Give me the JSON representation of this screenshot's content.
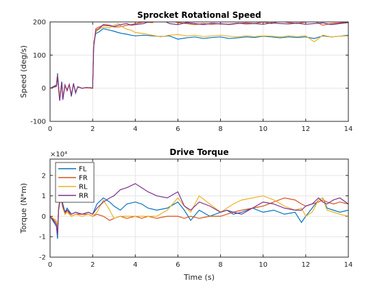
{
  "chart_data": [
    {
      "type": "line",
      "title": "Sprocket Rotational Speed",
      "xlabel": "",
      "ylabel": "Speed (deg/s)",
      "xlim": [
        0,
        14
      ],
      "ylim": [
        -100,
        200
      ],
      "xticks": [
        "0",
        "2",
        "4",
        "6",
        "8",
        "10",
        "12",
        "14"
      ],
      "yticks": [
        "-100",
        "0",
        "100",
        "200"
      ],
      "grid": true,
      "series": [
        {
          "color": "#0072BD",
          "x": [
            0,
            0.3,
            0.35,
            0.45,
            0.55,
            0.6,
            0.7,
            0.8,
            0.9,
            1.0,
            1.1,
            1.2,
            1.3,
            1.5,
            1.7,
            1.9,
            2.0,
            2.05,
            2.15,
            2.3,
            2.5,
            2.8,
            3.0,
            3.2,
            3.4,
            3.6,
            3.8,
            4.0,
            4.4,
            4.8,
            5.2,
            5.6,
            6.0,
            6.4,
            6.8,
            7.2,
            7.6,
            8.0,
            8.4,
            8.8,
            9.2,
            9.6,
            10.0,
            10.4,
            10.8,
            11.2,
            11.6,
            12.0,
            12.4,
            12.8,
            13.2,
            13.6,
            14.0
          ],
          "y": [
            0,
            10,
            45,
            -30,
            20,
            -35,
            8,
            -5,
            10,
            -25,
            15,
            -15,
            5,
            0,
            2,
            1,
            0,
            140,
            165,
            170,
            180,
            175,
            172,
            168,
            165,
            163,
            160,
            158,
            160,
            158,
            156,
            158,
            148,
            152,
            155,
            150,
            153,
            155,
            150,
            152,
            155,
            153,
            157,
            155,
            152,
            155,
            153,
            155,
            150,
            158,
            155,
            157,
            160
          ]
        },
        {
          "color": "#D95319",
          "x": [
            0,
            0.3,
            0.35,
            0.45,
            0.55,
            0.6,
            0.7,
            0.8,
            0.9,
            1.0,
            1.1,
            1.2,
            1.3,
            1.5,
            1.7,
            1.9,
            2.0,
            2.05,
            2.15,
            2.3,
            2.5,
            2.8,
            3.0,
            3.2,
            3.4,
            3.6,
            3.8,
            4.0,
            4.4,
            4.8,
            5.2,
            5.6,
            6.0,
            6.4,
            6.8,
            7.2,
            7.6,
            8.0,
            8.4,
            8.8,
            9.2,
            9.6,
            10.0,
            10.4,
            10.8,
            11.2,
            11.6,
            12.0,
            12.4,
            12.8,
            13.2,
            13.6,
            14.0
          ],
          "y": [
            0,
            8,
            40,
            -35,
            15,
            -30,
            10,
            -8,
            12,
            -20,
            12,
            -12,
            4,
            0,
            1,
            2,
            0,
            130,
            180,
            185,
            190,
            188,
            185,
            185,
            187,
            190,
            192,
            195,
            200,
            198,
            212,
            205,
            198,
            195,
            192,
            195,
            193,
            195,
            192,
            195,
            197,
            195,
            200,
            195,
            203,
            198,
            195,
            200,
            203,
            190,
            195,
            197,
            200
          ]
        },
        {
          "color": "#EDB120",
          "x": [
            0,
            0.3,
            0.35,
            0.45,
            0.55,
            0.6,
            0.7,
            0.8,
            0.9,
            1.0,
            1.1,
            1.2,
            1.3,
            1.5,
            1.7,
            1.9,
            2.0,
            2.05,
            2.15,
            2.3,
            2.5,
            2.8,
            3.0,
            3.2,
            3.4,
            3.6,
            3.8,
            4.0,
            4.4,
            4.8,
            5.2,
            5.6,
            6.0,
            6.4,
            6.8,
            7.2,
            7.6,
            8.0,
            8.4,
            8.8,
            9.2,
            9.6,
            10.0,
            10.4,
            10.8,
            11.2,
            11.6,
            12.0,
            12.4,
            12.8,
            13.2,
            13.6,
            14.0
          ],
          "y": [
            0,
            5,
            30,
            -25,
            12,
            -28,
            6,
            -4,
            8,
            -18,
            10,
            -10,
            3,
            0,
            1,
            0,
            0,
            135,
            170,
            178,
            185,
            182,
            190,
            195,
            185,
            178,
            175,
            168,
            165,
            160,
            155,
            160,
            162,
            158,
            160,
            156,
            158,
            160,
            157,
            155,
            158,
            156,
            158,
            157,
            155,
            158,
            156,
            158,
            140,
            160,
            155,
            157,
            158
          ]
        },
        {
          "color": "#7E2F8E",
          "x": [
            0,
            0.3,
            0.35,
            0.45,
            0.55,
            0.6,
            0.7,
            0.8,
            0.9,
            1.0,
            1.1,
            1.2,
            1.3,
            1.5,
            1.7,
            1.9,
            2.0,
            2.05,
            2.15,
            2.3,
            2.5,
            2.8,
            3.0,
            3.2,
            3.4,
            3.6,
            3.8,
            4.0,
            4.4,
            4.8,
            5.2,
            5.6,
            6.0,
            6.4,
            6.8,
            7.2,
            7.6,
            8.0,
            8.4,
            8.8,
            9.2,
            9.6,
            10.0,
            10.4,
            10.8,
            11.2,
            11.6,
            12.0,
            12.4,
            12.8,
            13.2,
            13.6,
            14.0
          ],
          "y": [
            0,
            6,
            35,
            -38,
            18,
            -33,
            9,
            -6,
            11,
            -22,
            13,
            -13,
            4,
            0,
            2,
            1,
            0,
            125,
            175,
            180,
            192,
            190,
            186,
            190,
            193,
            195,
            190,
            192,
            195,
            205,
            208,
            195,
            192,
            198,
            195,
            192,
            196,
            194,
            193,
            196,
            194,
            195,
            193,
            197,
            195,
            194,
            196,
            193,
            195,
            197,
            192,
            195,
            198
          ]
        }
      ]
    },
    {
      "type": "line",
      "title": "Drive Torque",
      "xlabel": "Time (s)",
      "ylabel": "Torque (N*m)",
      "exponent": "×10⁴",
      "xlim": [
        0,
        14
      ],
      "ylim": [
        -2,
        2.8
      ],
      "xticks": [
        "0",
        "2",
        "4",
        "6",
        "8",
        "10",
        "12",
        "14"
      ],
      "yticks": [
        "-2",
        "-1",
        "0",
        "1",
        "2"
      ],
      "grid": true,
      "legend": {
        "position": "top-left",
        "entries": [
          "FL",
          "FR",
          "RL",
          "RR"
        ]
      },
      "series": [
        {
          "name": "FL",
          "color": "#0072BD",
          "x": [
            0,
            0.3,
            0.35,
            0.4,
            0.5,
            0.6,
            0.7,
            0.8,
            1.0,
            1.2,
            1.5,
            1.8,
            2.0,
            2.2,
            2.5,
            2.8,
            3.0,
            3.3,
            3.6,
            4.0,
            4.3,
            4.6,
            5.0,
            5.5,
            6.0,
            6.3,
            6.6,
            7.0,
            7.5,
            8.0,
            8.3,
            8.6,
            9.0,
            9.5,
            10.0,
            10.5,
            11.0,
            11.5,
            11.8,
            12.0,
            12.3,
            12.6,
            12.8,
            13.0,
            13.3,
            13.6,
            14.0
          ],
          "y": [
            0,
            -0.5,
            -1.1,
            0.3,
            1.2,
            0.6,
            0.2,
            0.4,
            0.1,
            0.2,
            0.1,
            0.2,
            0.1,
            0.6,
            0.9,
            0.7,
            0.5,
            0.3,
            0.6,
            0.7,
            0.6,
            0.4,
            0.3,
            0.4,
            0.7,
            0.3,
            -0.2,
            0.3,
            0.0,
            0.2,
            0.3,
            0.1,
            0.2,
            0.4,
            0.2,
            0.3,
            0.1,
            0.2,
            -0.3,
            0.0,
            0.4,
            0.8,
            0.9,
            0.4,
            0.3,
            0.2,
            0.3
          ]
        },
        {
          "name": "FR",
          "color": "#D95319",
          "x": [
            0,
            0.3,
            0.35,
            0.4,
            0.5,
            0.6,
            0.7,
            0.8,
            1.0,
            1.2,
            1.5,
            1.8,
            2.0,
            2.2,
            2.5,
            2.8,
            3.0,
            3.3,
            3.6,
            4.0,
            4.3,
            4.6,
            5.0,
            5.5,
            6.0,
            6.3,
            6.6,
            7.0,
            7.5,
            8.0,
            8.3,
            8.6,
            9.0,
            9.5,
            10.0,
            10.5,
            11.0,
            11.5,
            11.8,
            12.0,
            12.3,
            12.6,
            12.8,
            13.0,
            13.3,
            13.6,
            14.0
          ],
          "y": [
            0,
            -0.3,
            -0.8,
            0.4,
            1.0,
            0.5,
            0.1,
            0.3,
            0.0,
            0.1,
            0.1,
            0.1,
            0.0,
            0.1,
            0.0,
            -0.2,
            -0.1,
            0.0,
            -0.1,
            0.0,
            -0.1,
            0.0,
            -0.1,
            0.0,
            0.0,
            -0.1,
            0.0,
            -0.1,
            0.0,
            0.0,
            0.1,
            0.2,
            0.3,
            0.4,
            0.5,
            0.7,
            0.9,
            0.8,
            0.6,
            0.5,
            0.6,
            0.7,
            0.8,
            0.7,
            0.6,
            0.7,
            0.6
          ]
        },
        {
          "name": "RL",
          "color": "#EDB120",
          "x": [
            0,
            0.3,
            0.35,
            0.4,
            0.5,
            0.6,
            0.7,
            0.8,
            1.0,
            1.2,
            1.5,
            1.8,
            2.0,
            2.2,
            2.5,
            2.8,
            3.0,
            3.3,
            3.6,
            4.0,
            4.3,
            4.6,
            5.0,
            5.5,
            6.0,
            6.3,
            6.6,
            7.0,
            7.5,
            8.0,
            8.3,
            8.6,
            9.0,
            9.5,
            10.0,
            10.5,
            11.0,
            11.5,
            11.8,
            12.0,
            12.3,
            12.6,
            12.8,
            13.0,
            13.3,
            13.6,
            14.0
          ],
          "y": [
            0,
            -0.2,
            -0.6,
            0.3,
            0.9,
            0.4,
            0.1,
            0.2,
            0.0,
            0.1,
            0.0,
            0.1,
            0.0,
            0.2,
            0.8,
            0.3,
            -0.1,
            0.0,
            0.0,
            0.0,
            0.0,
            0.0,
            0.0,
            0.3,
            0.9,
            0.5,
            0.2,
            1.0,
            0.6,
            0.2,
            0.4,
            0.6,
            0.8,
            0.9,
            1.0,
            0.8,
            0.5,
            0.3,
            0.4,
            0.0,
            0.2,
            0.8,
            0.9,
            0.3,
            0.2,
            0.1,
            0.0
          ]
        },
        {
          "name": "RR",
          "color": "#7E2F8E",
          "x": [
            0,
            0.3,
            0.35,
            0.4,
            0.5,
            0.6,
            0.7,
            0.8,
            1.0,
            1.2,
            1.5,
            1.8,
            2.0,
            2.2,
            2.5,
            2.8,
            3.0,
            3.3,
            3.6,
            4.0,
            4.3,
            4.6,
            5.0,
            5.5,
            6.0,
            6.3,
            6.6,
            7.0,
            7.5,
            8.0,
            8.3,
            8.6,
            9.0,
            9.5,
            10.0,
            10.5,
            11.0,
            11.5,
            11.8,
            12.0,
            12.3,
            12.6,
            12.8,
            13.0,
            13.3,
            13.6,
            14.0
          ],
          "y": [
            0,
            -0.4,
            -0.9,
            0.3,
            1.1,
            0.5,
            0.2,
            0.3,
            0.1,
            0.2,
            0.1,
            0.2,
            0.1,
            0.4,
            0.7,
            0.9,
            1.0,
            1.3,
            1.4,
            1.6,
            1.4,
            1.2,
            1.0,
            0.9,
            1.2,
            0.5,
            0.3,
            0.7,
            0.5,
            0.2,
            0.3,
            0.2,
            0.1,
            0.4,
            0.7,
            0.6,
            0.4,
            0.3,
            0.3,
            0.5,
            0.6,
            0.9,
            0.7,
            0.6,
            0.8,
            0.9,
            0.6
          ]
        }
      ]
    }
  ]
}
